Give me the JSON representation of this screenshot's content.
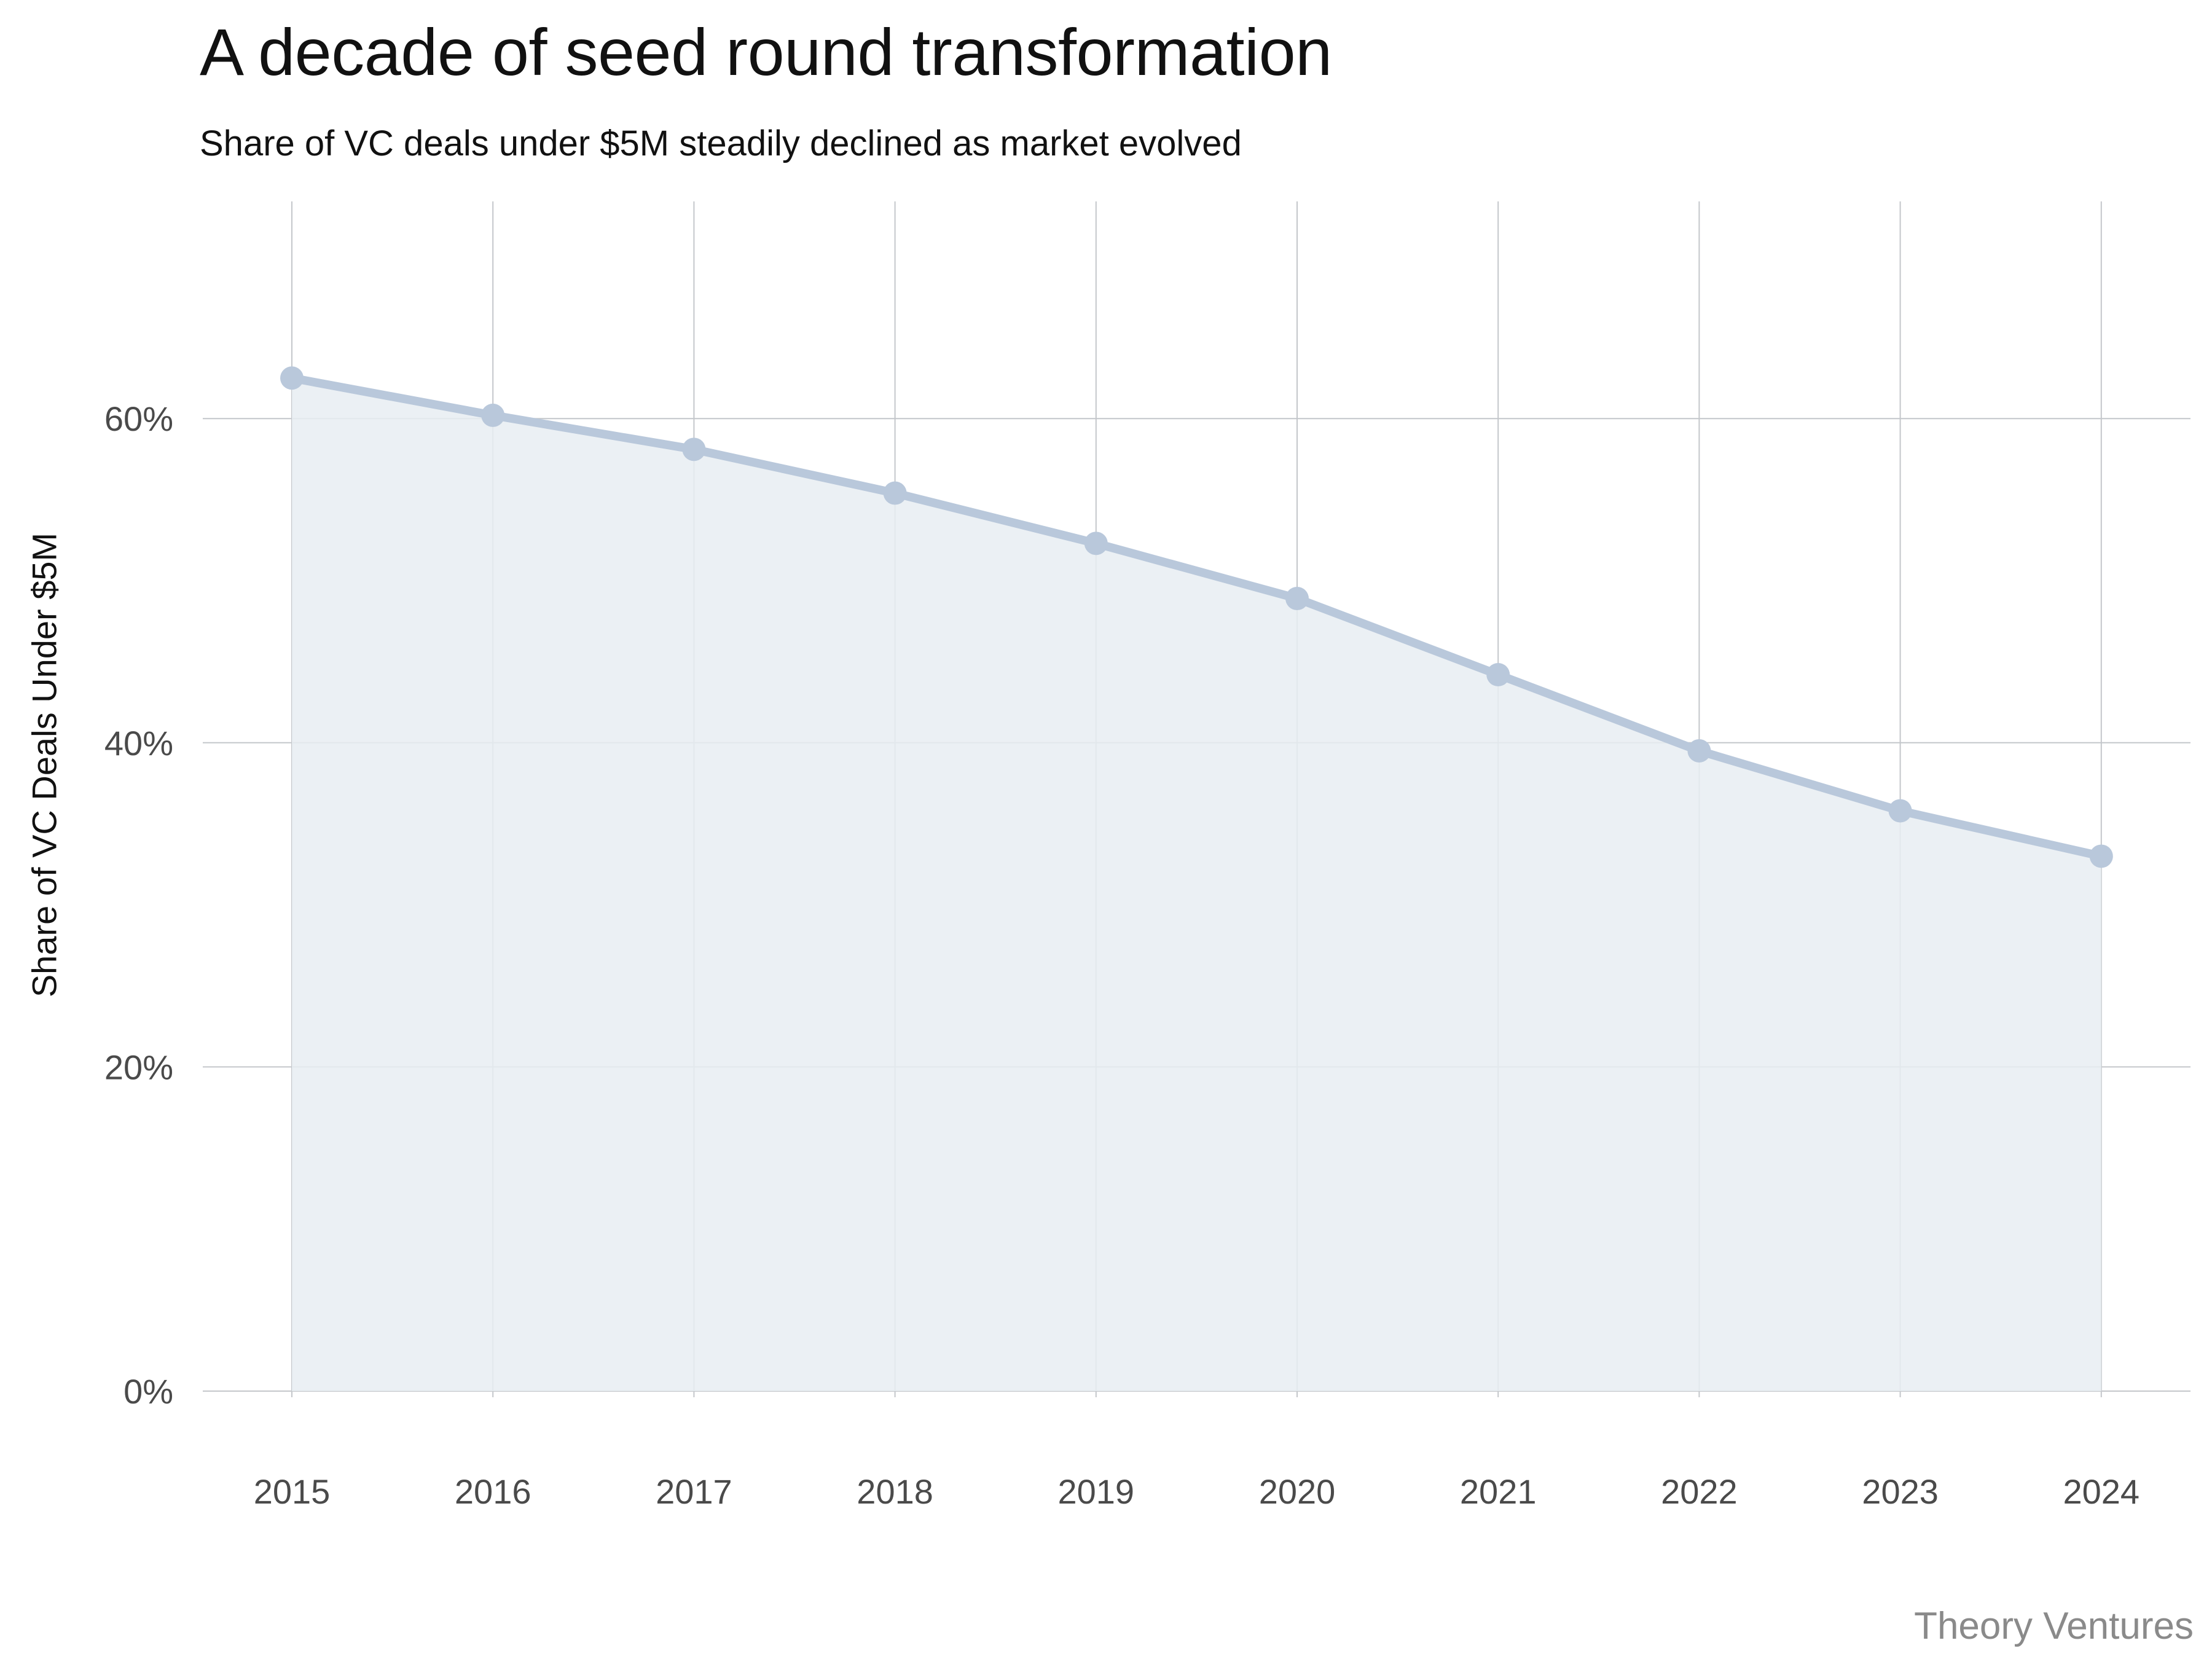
{
  "chart_data": {
    "type": "area",
    "title": "A decade of seed round transformation",
    "subtitle": "Share of VC deals under $5M steadily declined as market evolved",
    "xlabel": "",
    "ylabel": "Share of VC Deals Under $5M",
    "source": "Theory Ventures",
    "x": [
      "2015",
      "2016",
      "2017",
      "2018",
      "2019",
      "2020",
      "2021",
      "2022",
      "2023",
      "2024"
    ],
    "series": [
      {
        "values": [
          62.5,
          60.2,
          58.1,
          55.4,
          52.3,
          48.9,
          44.2,
          39.5,
          35.8,
          33.0
        ]
      }
    ],
    "y_ticks": [
      {
        "value": 0,
        "label": "0%"
      },
      {
        "value": 20,
        "label": "20%"
      },
      {
        "value": 40,
        "label": "40%"
      },
      {
        "value": 60,
        "label": "60%"
      }
    ],
    "ylim": [
      0,
      73.4
    ],
    "grid": true,
    "legend": "none",
    "colors": {
      "line": "#b9c8db",
      "area": "#e8edf2",
      "grid": "#c4c7cb"
    }
  }
}
